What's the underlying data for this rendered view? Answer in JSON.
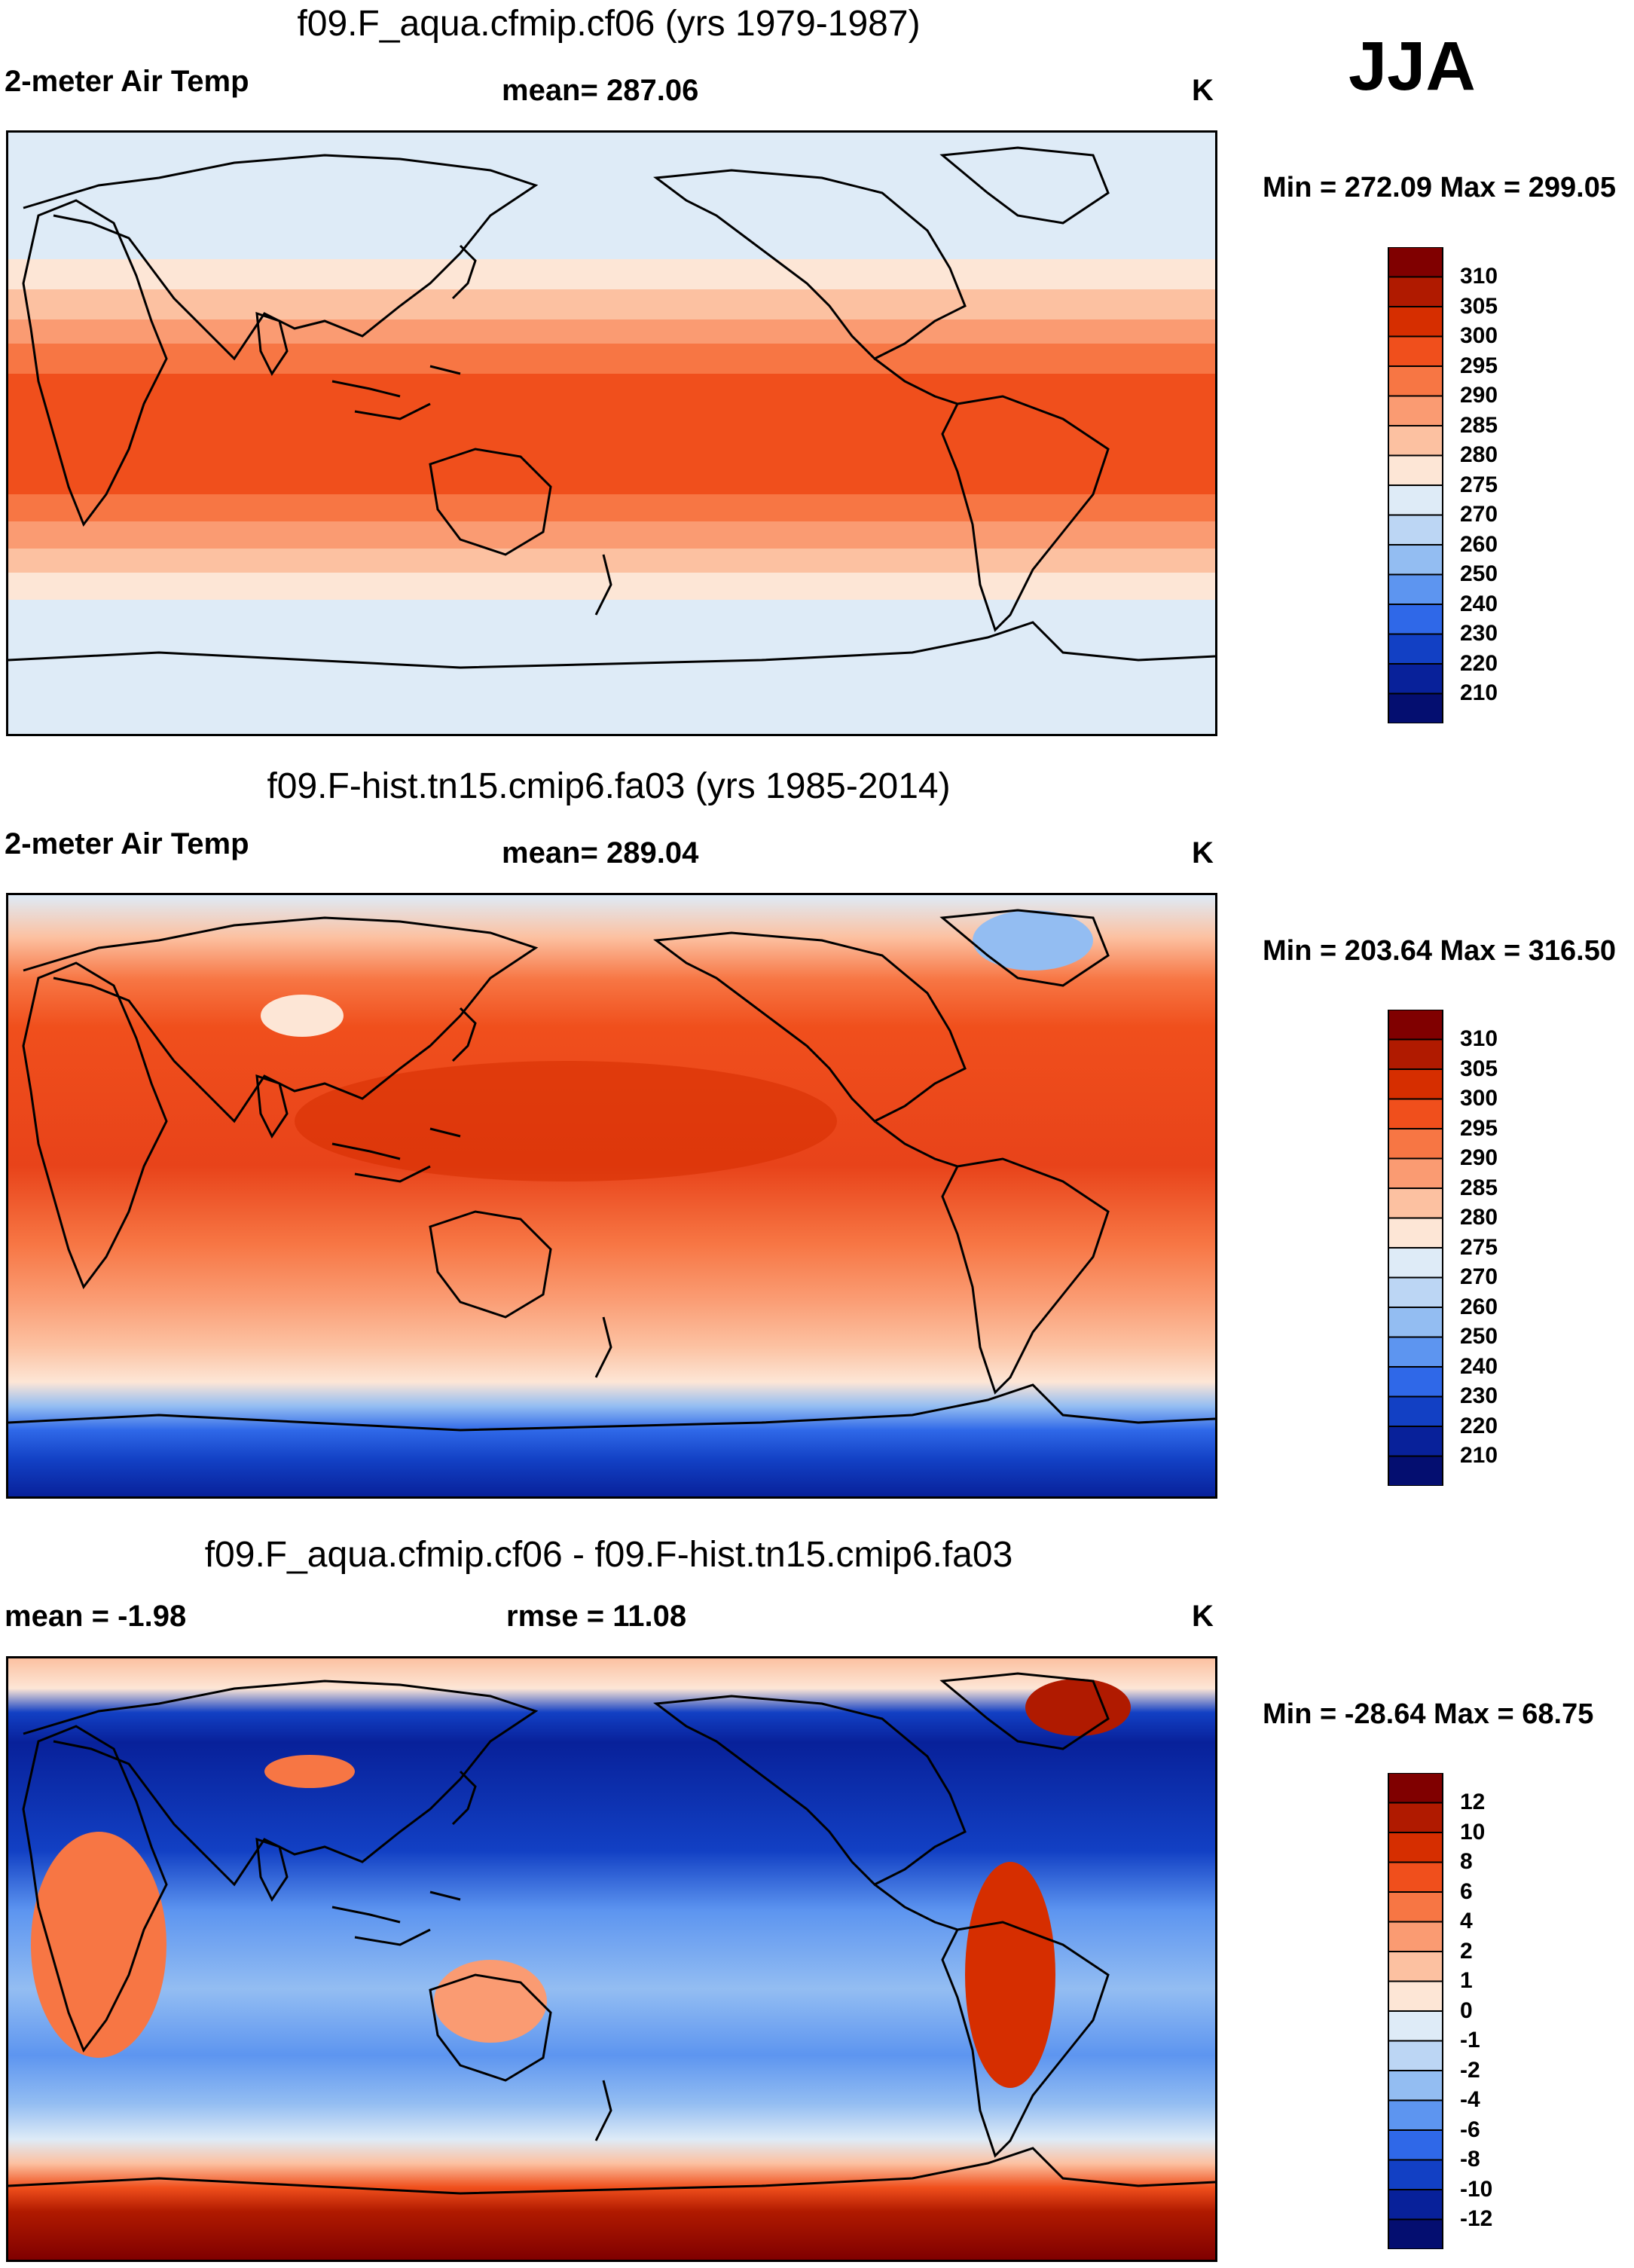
{
  "season": "JJA",
  "chart_data": [
    {
      "type": "heatmap",
      "title": "f09.F_aqua.cfmip.cf06 (yrs 1979-1987)",
      "left_label": "2-meter Air Temp",
      "center_label": "mean= 287.06",
      "units": "K",
      "minmax_label": "Min = 272.09 Max = 299.05",
      "colorbar_ticks": [
        "310",
        "305",
        "300",
        "295",
        "290",
        "285",
        "280",
        "275",
        "270",
        "260",
        "250",
        "240",
        "230",
        "220",
        "210"
      ],
      "xlim": [
        0,
        360
      ],
      "ylim": [
        -90,
        90
      ]
    },
    {
      "type": "heatmap",
      "title": "f09.F-hist.tn15.cmip6.fa03 (yrs 1985-2014)",
      "left_label": "2-meter Air Temp",
      "center_label": "mean= 289.04",
      "units": "K",
      "minmax_label": "Min = 203.64 Max = 316.50",
      "colorbar_ticks": [
        "310",
        "305",
        "300",
        "295",
        "290",
        "285",
        "280",
        "275",
        "270",
        "260",
        "250",
        "240",
        "230",
        "220",
        "210"
      ],
      "xlim": [
        0,
        360
      ],
      "ylim": [
        -90,
        90
      ]
    },
    {
      "type": "heatmap",
      "title": "f09.F_aqua.cfmip.cf06 - f09.F-hist.tn15.cmip6.fa03",
      "left_label": "mean =  -1.98",
      "center_label": "rmse =  11.08",
      "units": "K",
      "minmax_label": "Min = -28.64 Max =  68.75",
      "colorbar_ticks": [
        "12",
        "10",
        "8",
        "6",
        "4",
        "2",
        "1",
        "0",
        "-1",
        "-2",
        "-4",
        "-6",
        "-8",
        "-10",
        "-12"
      ],
      "xlim": [
        0,
        360
      ],
      "ylim": [
        -90,
        90
      ]
    }
  ],
  "colors": {
    "temp_scale": [
      "#800000",
      "#b01a00",
      "#d62e00",
      "#f04f1c",
      "#f77644",
      "#fa9b72",
      "#fcc1a1",
      "#fde6d6",
      "#deebf7",
      "#bcd6f4",
      "#93bdf2",
      "#5d95f0",
      "#2f68e8",
      "#1240c4",
      "#08219a",
      "#040e70"
    ],
    "diff_scale": [
      "#800000",
      "#b01a00",
      "#d62e00",
      "#f04f1c",
      "#f77644",
      "#fa9b72",
      "#fcc1a1",
      "#fde6d6",
      "#deebf7",
      "#bcd6f4",
      "#93bdf2",
      "#5d95f0",
      "#2f68e8",
      "#1240c4",
      "#08219a",
      "#040e70"
    ]
  }
}
